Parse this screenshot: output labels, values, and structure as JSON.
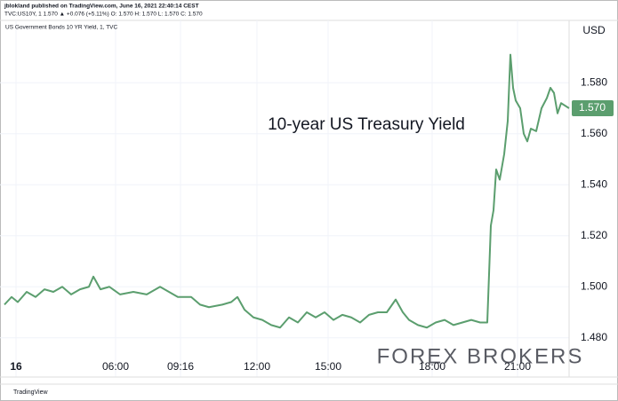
{
  "header": {
    "publisher": "jblokland published on TradingView.com, June 16, 2021 22:40:14 CEST",
    "quote": "TVC:US10Y, 1  1.570 ▲ +0.076 (+5.11%) O: 1.570 H: 1.570 L: 1.570 C: 1.570"
  },
  "footer": "TradingView",
  "watermark": "FOREX BROKERS",
  "chart_data": {
    "type": "line",
    "title": "US Government Bonds 10 YR Yield, 1, TVC",
    "annotation": "10-year US Treasury Yield",
    "currency": "USD",
    "last_price": {
      "value": 1.57,
      "label": "1.570"
    },
    "color": "#5b9e6e",
    "x": [
      0,
      8,
      15,
      25,
      35,
      45,
      55,
      65,
      75,
      85,
      95,
      100,
      108,
      118,
      130,
      145,
      160,
      175,
      185,
      195,
      210,
      220,
      230,
      245,
      255,
      262,
      270,
      280,
      290,
      300,
      310,
      320,
      330,
      340,
      350,
      360,
      370,
      380,
      390,
      400,
      410,
      420,
      430,
      440,
      448,
      455,
      465,
      475,
      485,
      495,
      505,
      515,
      525,
      535,
      543,
      547,
      550,
      553,
      557,
      562,
      566,
      569,
      572,
      575,
      580,
      584,
      588,
      592,
      598,
      604,
      610,
      614,
      618,
      622,
      626,
      635
    ],
    "values": [
      1.493,
      1.496,
      1.494,
      1.498,
      1.496,
      1.499,
      1.498,
      1.5,
      1.497,
      1.499,
      1.5,
      1.504,
      1.499,
      1.5,
      1.497,
      1.498,
      1.497,
      1.5,
      1.498,
      1.496,
      1.496,
      1.493,
      1.492,
      1.493,
      1.494,
      1.496,
      1.491,
      1.488,
      1.487,
      1.485,
      1.484,
      1.488,
      1.486,
      1.49,
      1.488,
      1.49,
      1.487,
      1.489,
      1.488,
      1.486,
      1.489,
      1.49,
      1.49,
      1.495,
      1.49,
      1.487,
      1.485,
      1.484,
      1.486,
      1.487,
      1.485,
      1.486,
      1.487,
      1.486,
      1.486,
      1.524,
      1.53,
      1.546,
      1.542,
      1.552,
      1.565,
      1.591,
      1.578,
      1.573,
      1.57,
      1.56,
      1.557,
      1.562,
      1.561,
      1.57,
      1.574,
      1.578,
      1.576,
      1.568,
      1.572,
      1.57
    ],
    "xlim": [
      0,
      635
    ],
    "xticks": [
      {
        "value": 13,
        "label": "16"
      },
      {
        "value": 125,
        "label": "06:00"
      },
      {
        "value": 198,
        "label": "09:16"
      },
      {
        "value": 284,
        "label": "12:00"
      },
      {
        "value": 364,
        "label": "15:00"
      },
      {
        "value": 481,
        "label": "18:00"
      },
      {
        "value": 577,
        "label": "21:00"
      }
    ],
    "ylim": [
      1.474,
      1.602
    ],
    "yticks": [
      {
        "value": 1.48,
        "label": "1.480"
      },
      {
        "value": 1.5,
        "label": "1.500"
      },
      {
        "value": 1.52,
        "label": "1.520"
      },
      {
        "value": 1.54,
        "label": "1.540"
      },
      {
        "value": 1.56,
        "label": "1.560"
      },
      {
        "value": 1.58,
        "label": "1.580"
      }
    ],
    "grid": true
  }
}
